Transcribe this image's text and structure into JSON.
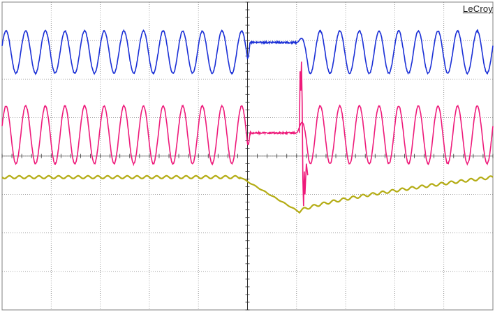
{
  "display": {
    "brand": "LeCroy",
    "background": "#ffffff",
    "grid_color": "#808080",
    "grid": {
      "h_divisions": 10,
      "v_divisions": 8
    }
  },
  "traces": [
    {
      "name": "blue",
      "color": "#1a2fd6",
      "kind": "sine",
      "cycles_per_div": 2.5,
      "amplitude_div": 0.55,
      "center_div": 1.3,
      "gap": {
        "start_div": 5.0,
        "end_div": 6.0,
        "level_div": 1.05
      }
    },
    {
      "name": "magenta",
      "color": "#ee1a7a",
      "kind": "sine",
      "cycles_per_div": 2.5,
      "amplitude_div": 0.75,
      "center_div": 3.45,
      "gap": {
        "start_div": 5.0,
        "end_div": 6.0,
        "level_div": 3.4
      },
      "spike_div": 6.1
    },
    {
      "name": "olive",
      "color": "#b4ac14",
      "kind": "dc_ripple",
      "level_div": 4.55,
      "dip_start_div": 4.85,
      "dip_min_div": 6.05,
      "dip_min_level_div": 5.45,
      "recovery_end_level_div": 4.55
    }
  ]
}
